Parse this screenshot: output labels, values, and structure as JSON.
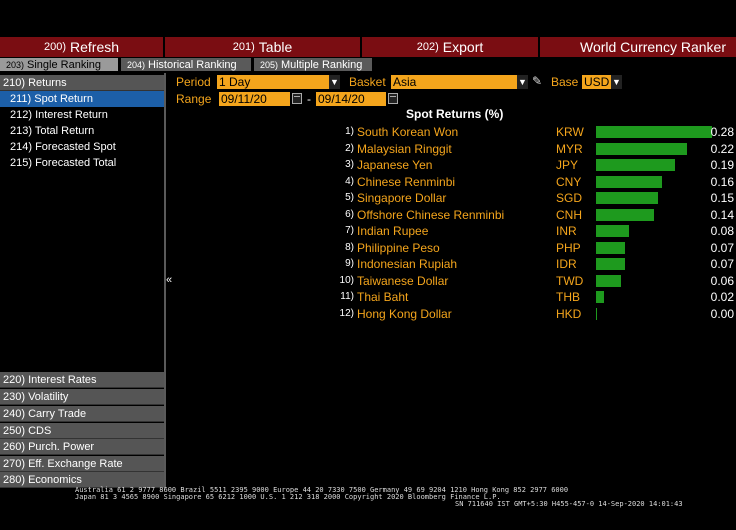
{
  "menubar": {
    "refresh": {
      "num": "200)",
      "label": "Refresh"
    },
    "table": {
      "num": "201)",
      "label": "Table"
    },
    "export": {
      "num": "202)",
      "label": "Export"
    },
    "title": "World Currency Ranker"
  },
  "tabs": [
    {
      "num": "203)",
      "label": "Single Ranking"
    },
    {
      "num": "204)",
      "label": "Historical Ranking"
    },
    {
      "num": "205)",
      "label": "Multiple Ranking"
    }
  ],
  "sidebar": {
    "returns": "210) Returns",
    "sub": [
      "211) Spot Return",
      "212) Interest Return",
      "213) Total Return",
      "214) Forecasted Spot",
      "215) Forecasted Total"
    ],
    "groups": [
      "220) Interest Rates",
      "230) Volatility",
      "240) Carry Trade",
      "250) CDS",
      "260) Purch. Power",
      "270) Eff. Exchange Rate",
      "280) Economics"
    ]
  },
  "controls": {
    "period_label": "Period",
    "period_value": "1 Day",
    "basket_label": "Basket",
    "basket_value": "Asia",
    "base_label": "Base",
    "base_value": "USD",
    "range_label": "Range",
    "range_start": "09/11/20",
    "range_sep": "-",
    "range_end": "09/14/20"
  },
  "chart_data": {
    "type": "bar",
    "title": "Spot Returns (%)",
    "categories": [
      "South Korean Won",
      "Malaysian Ringgit",
      "Japanese Yen",
      "Chinese Renminbi",
      "Singapore Dollar",
      "Offshore Chinese Renminbi",
      "Indian Rupee",
      "Philippine Peso",
      "Indonesian Rupiah",
      "Taiwanese Dollar",
      "Thai Baht",
      "Hong Kong Dollar"
    ],
    "codes": [
      "KRW",
      "MYR",
      "JPY",
      "CNY",
      "SGD",
      "CNH",
      "INR",
      "PHP",
      "IDR",
      "TWD",
      "THB",
      "HKD"
    ],
    "values": [
      0.28,
      0.22,
      0.19,
      0.16,
      0.15,
      0.14,
      0.08,
      0.07,
      0.07,
      0.06,
      0.02,
      0.0
    ],
    "value_labels": [
      "0.28",
      "0.22",
      "0.19",
      "0.16",
      "0.15",
      "0.14",
      "0.08",
      "0.07",
      "0.07",
      "0.06",
      "0.02",
      "0.00"
    ],
    "ranks": [
      "1)",
      "2)",
      "3)",
      "4)",
      "5)",
      "6)",
      "7)",
      "8)",
      "9)",
      "10)",
      "11)",
      "12)"
    ],
    "bar_color": "#1e9a1e"
  },
  "footer": {
    "line1": "Australia 61 2 9777 8600 Brazil 5511 2395 9000 Europe 44 20 7330 7500 Germany 49 69 9204 1210 Hong Kong 852 2977 6000",
    "line2": "Japan 81 3 4565 8900      Singapore 65 6212 1000      U.S. 1 212 318 2000        Copyright 2020 Bloomberg Finance L.P.",
    "line3": "SN 711640 IST  GMT+5:30 H455-457-0 14-Sep-2020 14:01:43"
  }
}
